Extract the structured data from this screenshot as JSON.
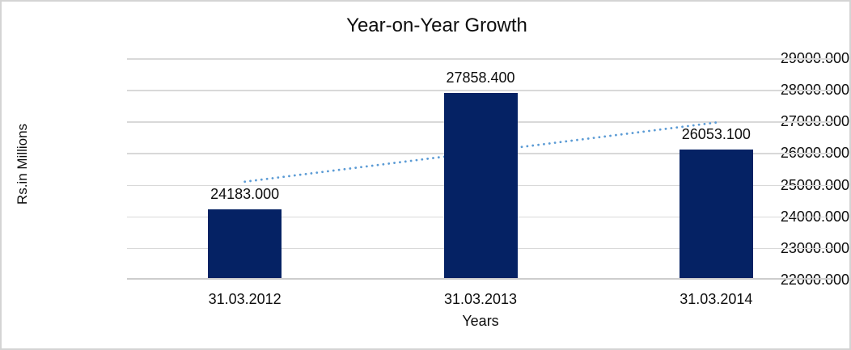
{
  "chart_data": {
    "type": "bar",
    "title": "Year-on-Year Growth",
    "xlabel": "Years",
    "ylabel": "Rs.in Millions",
    "categories": [
      "31.03.2012",
      "31.03.2013",
      "31.03.2014"
    ],
    "values": [
      24183.0,
      27858.4,
      26053.1
    ],
    "value_labels": [
      "24183.000",
      "27858.400",
      "26053.100"
    ],
    "y_tick_labels": [
      "29000.000",
      "28000.000",
      "27000.000",
      "26000.000",
      "25000.000",
      "24000.000",
      "23000.000",
      "22000.000"
    ],
    "y_tick_values": [
      29000,
      28000,
      27000,
      26000,
      25000,
      24000,
      23000,
      22000
    ],
    "ylim": [
      22000,
      29000
    ],
    "y_tick_step": 1000,
    "grid": true,
    "legend": false,
    "colors": {
      "bar": "#052264",
      "gridline": "#d9d9d9",
      "axis_line": "#cdcdcd",
      "trendline": "#5B9BD5",
      "text": "#0d0d0d"
    },
    "trendline": {
      "type": "linear",
      "style": "dotted",
      "color": "#5B9BD5",
      "start_value": 25096.4,
      "end_value": 26966.6
    }
  }
}
